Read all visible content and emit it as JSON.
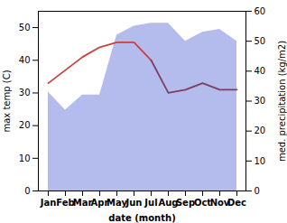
{
  "chart_data": {
    "type": "line",
    "xlabel": "date (month)",
    "ylabel": "max temp (C)",
    "y2label": "med. precipitation (kg/m2)",
    "categories": [
      "Jan",
      "Feb",
      "Mar",
      "Apr",
      "May",
      "Jun",
      "Jul",
      "Aug",
      "Sep",
      "Oct",
      "Nov",
      "Dec"
    ],
    "series": [
      {
        "type": "area",
        "axis": "y2",
        "color": "#b3bcec",
        "values": [
          33,
          27,
          32,
          32,
          52,
          55,
          56,
          56,
          50,
          53,
          54,
          50
        ]
      },
      {
        "type": "line",
        "color": "#c8413c",
        "values": [
          33,
          37,
          41,
          44,
          45.5,
          45.5,
          40,
          null,
          null,
          null,
          null,
          null
        ]
      },
      {
        "type": "line",
        "color": "#7a4060",
        "values": [
          null,
          null,
          null,
          null,
          null,
          null,
          40,
          30,
          31,
          33,
          31,
          31
        ]
      }
    ],
    "ylim": [
      0,
      55
    ],
    "yticks": [
      0,
      10,
      20,
      30,
      40,
      50
    ],
    "y2lim": [
      0,
      60
    ],
    "y2ticks": [
      0,
      10,
      20,
      30,
      40,
      50,
      60
    ]
  }
}
